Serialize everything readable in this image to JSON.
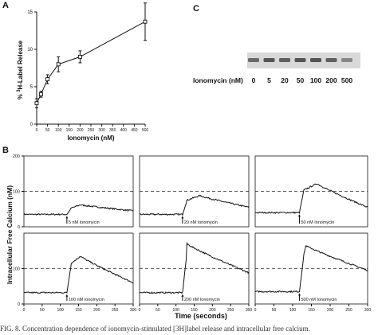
{
  "panel_letters": [
    "A",
    "B",
    "C"
  ],
  "caption": "FIG. 8. Concentration dependence of ionomycin-stimulated [3H]label release and intracellular free calcium.",
  "chart_data": [
    {
      "type": "scatter",
      "panel": "A",
      "xlabel": "Ionomycin (nM)",
      "ylabel_parts": {
        "pre": "% ",
        "sup": "3",
        "post": "H-Label Release"
      },
      "xlim": [
        0,
        500
      ],
      "ylim": [
        0,
        15
      ],
      "xticks": [
        0,
        50,
        100,
        150,
        200,
        250,
        300,
        350,
        400,
        450,
        500
      ],
      "yticks": [
        0,
        5,
        10,
        15
      ],
      "points": [
        {
          "x": 0,
          "y": 2.8,
          "err": 0.6
        },
        {
          "x": 20,
          "y": 4.0,
          "err": 0.4
        },
        {
          "x": 50,
          "y": 6.0,
          "err": 0.6
        },
        {
          "x": 100,
          "y": 8.0,
          "err": 1.0
        },
        {
          "x": 200,
          "y": 9.0,
          "err": 0.8
        },
        {
          "x": 500,
          "y": 13.7,
          "err": 2.5
        }
      ]
    },
    {
      "type": "line",
      "panel": "B",
      "xlabel": "Time (seconds)",
      "ylabel": "Intracellular Free Calcium (nM)",
      "xlim": [
        0,
        300
      ],
      "ylim": [
        0,
        200
      ],
      "xticks": [
        0,
        50,
        100,
        150,
        200,
        250,
        300
      ],
      "yticks_top": [
        0,
        100,
        200
      ],
      "yticks_bottom": [
        0,
        100
      ],
      "reference_line": 100,
      "traces": [
        {
          "label": "5 nM Ionomycin",
          "baseline": 35,
          "peak": 62,
          "peak_t": 155,
          "end": 45,
          "inj_t": 118
        },
        {
          "label": "20 nM Ionomycin",
          "baseline": 35,
          "peak": 88,
          "peak_t": 165,
          "end": 55,
          "inj_t": 118
        },
        {
          "label": "50 nM Ionomycin",
          "baseline": 40,
          "peak": 122,
          "peak_t": 165,
          "end": 55,
          "inj_t": 118
        },
        {
          "label": "100 nM Ionomycin",
          "baseline": 32,
          "peak": 135,
          "peak_t": 155,
          "end": 60,
          "inj_t": 118
        },
        {
          "label": "200 nM Ionomycin",
          "baseline": 32,
          "peak": 170,
          "peak_t": 130,
          "end": 88,
          "inj_t": 118
        },
        {
          "label": "500 nM Ionomycin",
          "baseline": 35,
          "peak": 165,
          "peak_t": 135,
          "end": 95,
          "inj_t": 118
        }
      ]
    },
    {
      "type": "blot",
      "panel": "C",
      "row_label": "Ionomycin (nM)",
      "lanes": [
        "0",
        "5",
        "20",
        "50",
        "100",
        "200",
        "500"
      ],
      "band_intensity": [
        0.75,
        0.85,
        0.8,
        0.85,
        0.85,
        0.8,
        0.6
      ]
    }
  ]
}
